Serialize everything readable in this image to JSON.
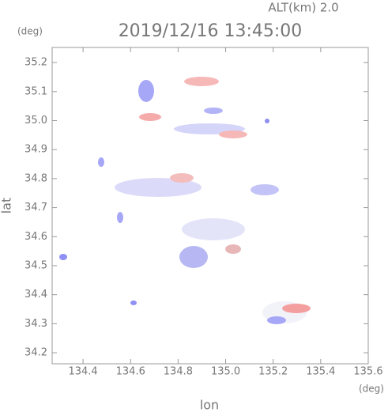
{
  "chart_data": {
    "type": "map",
    "title": "2019/12/16 13:45:00",
    "subtitle": "ALT(km) 2.0",
    "y_unit": "(deg)",
    "x_unit": "(deg)",
    "x_label": "lon",
    "y_label": "lat",
    "xlim": [
      134.27,
      135.6
    ],
    "ylim": [
      34.162,
      35.252
    ],
    "xticks": [
      134.4,
      134.6,
      134.8,
      {
        "value": 135.0,
        "label": "135.0"
      },
      135.2,
      135.4,
      135.6
    ],
    "yticks": [
      34.2,
      34.3,
      34.4,
      34.5,
      34.6,
      34.7,
      34.8,
      34.9,
      {
        "value": 35.0,
        "label": "35.0"
      },
      35.1,
      35.2
    ]
  }
}
